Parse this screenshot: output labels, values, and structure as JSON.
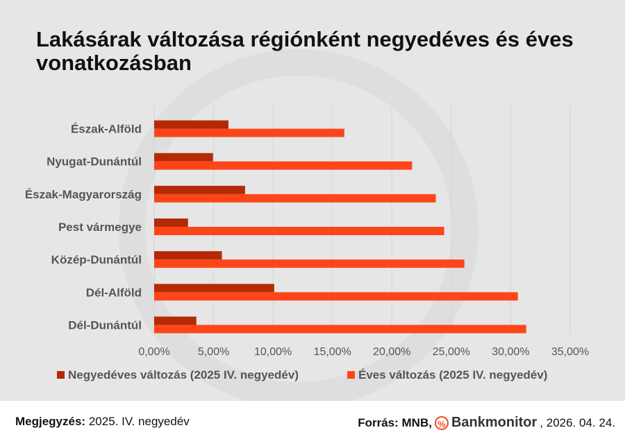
{
  "chart_data": {
    "type": "bar",
    "orientation": "horizontal",
    "title": "Lakásárak változása régiónként negyedéves és éves vonatkozásban",
    "categories": [
      "Észak-Alföld",
      "Nyugat-Dunántúl",
      "Észak-Magyarország",
      "Pest vármegye",
      "Közép-Dunántúl",
      "Dél-Alföld",
      "Dél-Dunántúl"
    ],
    "series": [
      {
        "name": "Negyedéves változás (2025 IV. negyedév)",
        "color": "#b52a06",
        "values": [
          6.25,
          4.95,
          7.65,
          2.85,
          5.7,
          10.1,
          3.55
        ]
      },
      {
        "name": "Éves változás (2025 IV. negyedév)",
        "color": "#fc4619",
        "values": [
          16.0,
          21.7,
          23.7,
          24.4,
          26.1,
          30.6,
          31.3
        ]
      }
    ],
    "xlim": [
      0,
      35
    ],
    "xticks": [
      "0,00%",
      "5,00%",
      "10,00%",
      "15,00%",
      "20,00%",
      "25,00%",
      "30,00%",
      "35,00%"
    ],
    "grid": true,
    "legend": "bottom"
  },
  "footer": {
    "note_label": "Megjegyzés:",
    "note_value": "2025. IV. negyedév",
    "source_label": "Forrás: MNB,",
    "logo_symbol": "%",
    "brand": "Bankmonitor",
    "date": ", 2026. 04. 24."
  }
}
